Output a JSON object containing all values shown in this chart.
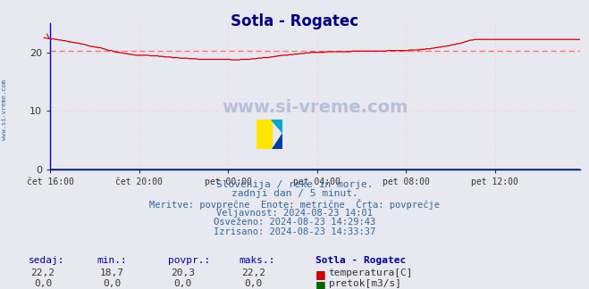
{
  "title": "Sotla - Rogatec",
  "title_color": "#000080",
  "title_fontsize": 12,
  "bg_color": "#e8e8f0",
  "plot_bg_color": "#e8e8f0",
  "grid_color": "#ffcccc",
  "grid_style": ":",
  "avg_line_color": "#ff6666",
  "avg_line_value": 20.3,
  "ylim": [
    0,
    25
  ],
  "yticks": [
    0,
    10,
    20
  ],
  "xtick_labels": [
    "čet 16:00",
    "čet 20:00",
    "pet 00:00",
    "pet 04:00",
    "pet 08:00",
    "pet 12:00"
  ],
  "xtick_positions": [
    0,
    48,
    96,
    144,
    192,
    240
  ],
  "total_points": 289,
  "temp_color": "#cc0000",
  "flow_color": "#006600",
  "watermark": "www.si-vreme.com",
  "info_lines": [
    "Slovenija / reke in morje.",
    "zadnji dan / 5 minut.",
    "Meritve: povprečne  Enote: metrične  Črta: povprečje",
    "Veljavnost: 2024-08-23 14:01",
    "Osveženo: 2024-08-23 14:29:43",
    "Izrisano: 2024-08-23 14:33:37"
  ],
  "info_color": "#336699",
  "table_headers": [
    "sedaj:",
    "min.:",
    "povpr.:",
    "maks.:",
    "Sotla - Rogatec"
  ],
  "table_row1": [
    "22,2",
    "18,7",
    "20,3",
    "22,2"
  ],
  "table_row2": [
    "0,0",
    "0,0",
    "0,0",
    "0,0"
  ],
  "table_label1": "temperatura[C]",
  "table_label2": "pretok[m3/s]",
  "table_color_header": "#000099",
  "table_color_data": "#333333",
  "temp_data": [
    22.2,
    22.3,
    22.3,
    22.2,
    22.2,
    22.1,
    22.1,
    22.0,
    22.0,
    21.9,
    21.8,
    21.8,
    21.7,
    21.7,
    21.6,
    21.6,
    21.5,
    21.4,
    21.4,
    21.3,
    21.2,
    21.1,
    21.0,
    21.0,
    20.9,
    20.9,
    20.8,
    20.8,
    20.7,
    20.6,
    20.5,
    20.4,
    20.3,
    20.3,
    20.2,
    20.1,
    20.0,
    20.0,
    19.9,
    19.9,
    19.8,
    19.8,
    19.7,
    19.7,
    19.6,
    19.6,
    19.5,
    19.5,
    19.5,
    19.5,
    19.5,
    19.5,
    19.5,
    19.5,
    19.4,
    19.4,
    19.4,
    19.4,
    19.4,
    19.3,
    19.3,
    19.3,
    19.2,
    19.2,
    19.2,
    19.2,
    19.1,
    19.1,
    19.1,
    19.1,
    19.0,
    19.0,
    19.0,
    19.0,
    19.0,
    18.9,
    18.9,
    18.9,
    18.9,
    18.9,
    18.8,
    18.8,
    18.8,
    18.8,
    18.8,
    18.8,
    18.8,
    18.8,
    18.8,
    18.8,
    18.8,
    18.8,
    18.8,
    18.8,
    18.8,
    18.8,
    18.8,
    18.8,
    18.7,
    18.7,
    18.7,
    18.7,
    18.7,
    18.8,
    18.8,
    18.8,
    18.8,
    18.8,
    18.8,
    18.9,
    18.9,
    18.9,
    19.0,
    19.0,
    19.0,
    19.1,
    19.1,
    19.1,
    19.1,
    19.2,
    19.2,
    19.3,
    19.3,
    19.4,
    19.4,
    19.5,
    19.5,
    19.5,
    19.5,
    19.6,
    19.6,
    19.6,
    19.7,
    19.7,
    19.7,
    19.8,
    19.8,
    19.8,
    19.9,
    19.9,
    19.9,
    20.0,
    20.0,
    20.0,
    20.0,
    20.0,
    20.0,
    20.0,
    20.0,
    20.1,
    20.1,
    20.1,
    20.1,
    20.1,
    20.1,
    20.1,
    20.1,
    20.1,
    20.1,
    20.1,
    20.1,
    20.1,
    20.1,
    20.2,
    20.2,
    20.2,
    20.2,
    20.2,
    20.2,
    20.2,
    20.2,
    20.2,
    20.2,
    20.2,
    20.2,
    20.2,
    20.2,
    20.2,
    20.2,
    20.2,
    20.2,
    20.2,
    20.3,
    20.3,
    20.3,
    20.3,
    20.3,
    20.3,
    20.3,
    20.3,
    20.3,
    20.3,
    20.3,
    20.3,
    20.4,
    20.4,
    20.4,
    20.4,
    20.4,
    20.4,
    20.5,
    20.5,
    20.5,
    20.6,
    20.6,
    20.6,
    20.7,
    20.7,
    20.8,
    20.8,
    20.9,
    20.9,
    21.0,
    21.0,
    21.1,
    21.1,
    21.2,
    21.3,
    21.3,
    21.4,
    21.5,
    21.5,
    21.6,
    21.7,
    21.8,
    21.9,
    22.0,
    22.1,
    22.1,
    22.2,
    22.2,
    22.2,
    22.2,
    22.2,
    22.2,
    22.2,
    22.2,
    22.2,
    22.2,
    22.2,
    22.2,
    22.2,
    22.2,
    22.2,
    22.2,
    22.2,
    22.2,
    22.2,
    22.2,
    22.2,
    22.2,
    22.2,
    22.2,
    22.2,
    22.2,
    22.2,
    22.2,
    22.2,
    22.2,
    22.2,
    22.2,
    22.2,
    22.2,
    22.2,
    22.2,
    22.2,
    22.2,
    22.2,
    22.2,
    22.2,
    22.2,
    22.2,
    22.2,
    22.2,
    22.2,
    22.2,
    22.2,
    22.2,
    22.2,
    22.2,
    22.2,
    22.2,
    22.2,
    22.2,
    22.2,
    22.2,
    22.2
  ],
  "flow_data_value": 0.0,
  "sidebar_text": "www.si-vreme.com",
  "sidebar_color": "#336699",
  "spine_color": "#0000cc",
  "tick_color": "#333333"
}
